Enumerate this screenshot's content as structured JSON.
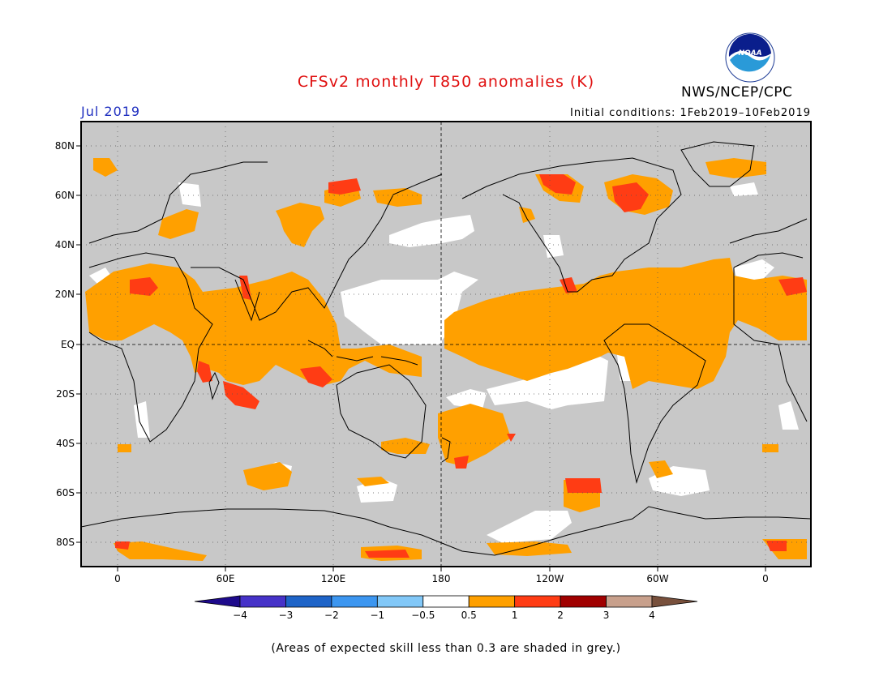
{
  "header": {
    "title": "CFSv2 monthly T850 anomalies (K)",
    "valid_month": "Jul 2019",
    "organization": "NWS/NCEP/CPC",
    "initial_conditions": "Initial conditions: 1Feb2019–10Feb2019",
    "logo_text": "NOAA"
  },
  "map": {
    "lat_labels": [
      "80N",
      "60N",
      "40N",
      "20N",
      "EQ",
      "20S",
      "40S",
      "60S",
      "80S"
    ],
    "lon_labels": [
      "0",
      "60E",
      "120E",
      "180",
      "120W",
      "60W",
      "0"
    ],
    "grey_meaning": "low skill",
    "colors": {
      "grey": "#c8c8c8",
      "white": "#ffffff",
      "orange": "#ffa000",
      "red_orange": "#ff3c14",
      "coast": "#000000"
    }
  },
  "legend": {
    "tick_labels": [
      "−4",
      "−3",
      "−2",
      "−1",
      "−0.5",
      "0.5",
      "1",
      "2",
      "3",
      "4"
    ],
    "colors": [
      "#1e0a8c",
      "#4632c8",
      "#1e64c8",
      "#3c96f0",
      "#82c8f8",
      "#ffffff",
      "#ffa000",
      "#ff3c14",
      "#a00000",
      "#c8a08c",
      "#78503c"
    ]
  },
  "footnote": "(Areas of expected skill less than 0.3 are shaded in grey.)"
}
